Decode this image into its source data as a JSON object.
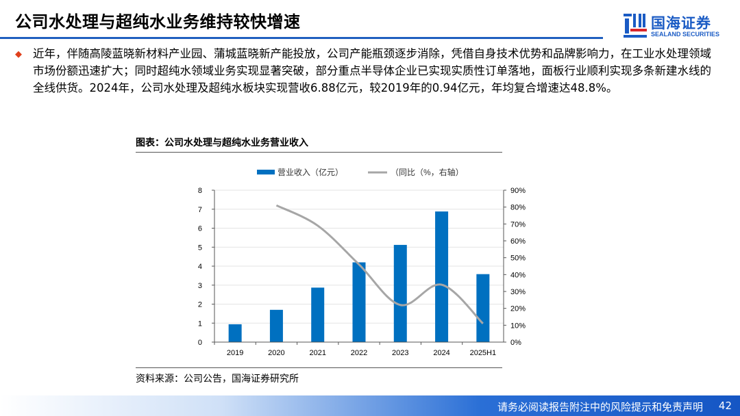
{
  "header": {
    "title": "公司水处理与超纯水业务维持较快增速",
    "logo_cn": "国海证券",
    "logo_en": "SEALAND SECURITIES"
  },
  "body": {
    "paragraph": "近年，伴随高陵蓝晓新材料产业园、蒲城蓝晓新产能投放，公司产能瓶颈逐步消除，凭借自身技术优势和品牌影响力，在工业水处理领域市场份额迅速扩大；同时超纯水领域业务实现显著突破，部分重点半导体企业已实现实质性订单落地，面板行业顺利实现多条新建水线的全线供货。2024年，公司水处理及超纯水板块实现营收6.88亿元，较2019年的0.94亿元，年均复合增速达48.8%。",
    "bullet_icon": "diamond-icon"
  },
  "chart_title": "图表：公司水处理与超纯水业务营业收入",
  "source": "资料来源：公司公告，国海证券研究所",
  "footer": {
    "disclaimer": "请务必阅读报告附注中的风险提示和免责声明",
    "page": "42"
  },
  "colors": {
    "bar": "#0070c0",
    "line": "#a6a6a6",
    "accent": "#1f5fbf",
    "bullet": "#e0401c"
  },
  "chart_data": {
    "type": "bar+line",
    "categories": [
      "2019",
      "2020",
      "2021",
      "2022",
      "2023",
      "2024",
      "2025H1"
    ],
    "series": [
      {
        "name": "营业收入（亿元）",
        "type": "bar",
        "axis": "left",
        "values": [
          0.94,
          1.7,
          2.87,
          4.2,
          5.12,
          6.88,
          3.58
        ]
      },
      {
        "name": "（同比（%，右轴）",
        "type": "line",
        "axis": "right",
        "values": [
          null,
          81,
          69,
          46,
          22,
          34,
          11
        ]
      }
    ],
    "y_left": {
      "min": 0,
      "max": 8,
      "ticks": [
        "0",
        "1",
        "2",
        "3",
        "4",
        "5",
        "6",
        "7",
        "8"
      ]
    },
    "y_right": {
      "min": 0,
      "max": 90,
      "ticks": [
        "0%",
        "10%",
        "20%",
        "30%",
        "40%",
        "50%",
        "60%",
        "70%",
        "80%",
        "90%"
      ]
    },
    "grid": true,
    "legend_position": "top"
  }
}
